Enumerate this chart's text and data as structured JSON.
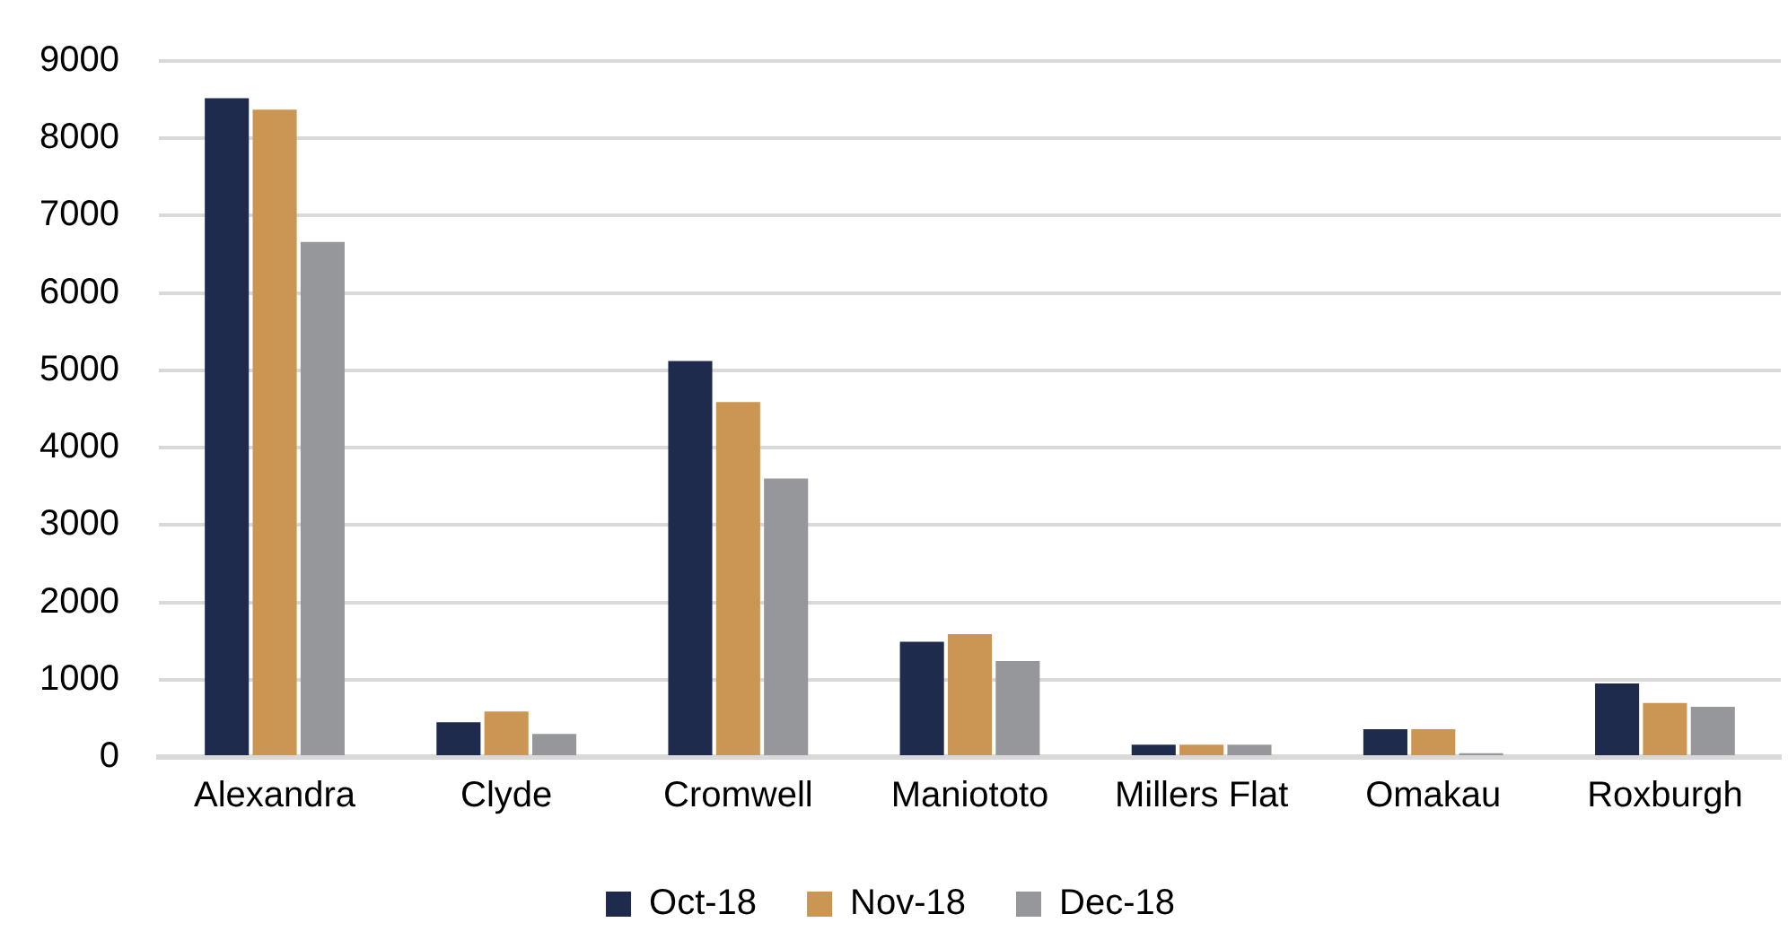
{
  "chart_data": {
    "type": "bar",
    "categories": [
      "Alexandra",
      "Clyde",
      "Cromwell",
      "Maniototo",
      "Millers Flat",
      "Omakau",
      "Roxburgh"
    ],
    "series": [
      {
        "name": "Oct-18",
        "color": "#1e2b4d",
        "values": [
          8520,
          450,
          5120,
          1490,
          160,
          360,
          950
        ]
      },
      {
        "name": "Nov-18",
        "color": "#cb9654",
        "values": [
          8370,
          590,
          4590,
          1590,
          160,
          360,
          700
        ]
      },
      {
        "name": "Dec-18",
        "color": "#96979b",
        "values": [
          6660,
          300,
          3600,
          1240,
          160,
          50,
          650
        ]
      }
    ],
    "ylim": [
      0,
      9000
    ],
    "yticks": [
      0,
      1000,
      2000,
      3000,
      4000,
      5000,
      6000,
      7000,
      8000,
      9000
    ],
    "grid": "y",
    "legend": "bottom"
  }
}
